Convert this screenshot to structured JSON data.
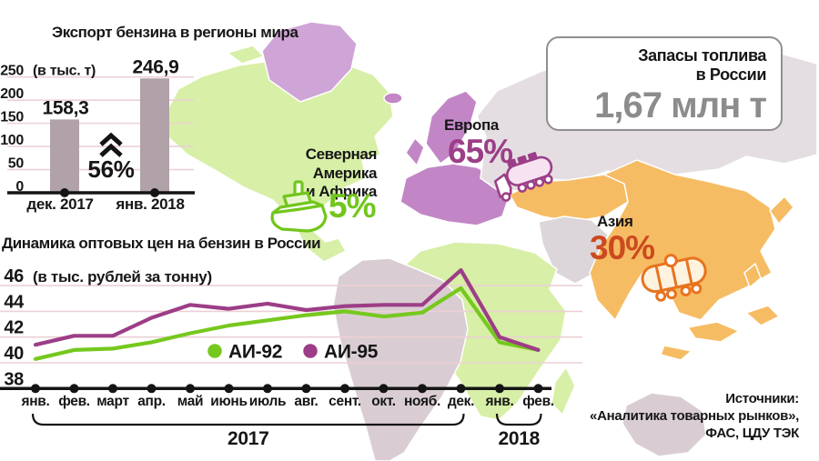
{
  "colors": {
    "green": "#76c81e",
    "purple": "#9c3e87",
    "orange_red": "#cc4a1f",
    "bar": "#b0a2a8",
    "grid_pink": "#ecd0d5",
    "muted": "#9b8e94",
    "axis_black": "#141414",
    "map_green": "#d7efa6",
    "map_purple": "#c286c6",
    "map_orchid": "#cfa4d6",
    "map_orange": "#f6bc63",
    "map_pale_gray": "#e4dee2",
    "map_gray": "#dcd6da",
    "map_mauve": "#d9cdd3"
  },
  "chart_data": [
    {
      "type": "bar",
      "title": "Экспорт бензина в регионы мира",
      "unit_label": "(в тыс. т)",
      "categories": [
        "дек. 2017",
        "янв. 2018"
      ],
      "values": [
        158.3,
        246.9
      ],
      "value_labels": [
        "158,3",
        "246,9"
      ],
      "change_label": "56%",
      "y_ticks": [
        250,
        200,
        150,
        100,
        50,
        0
      ],
      "ylim": [
        0,
        250
      ],
      "grid": true
    },
    {
      "type": "line",
      "title": "Динамика оптовых цен на бензин в России",
      "unit_label": "(в тыс. рублей за тонну)",
      "y_ticks": [
        46,
        44,
        42,
        40,
        38
      ],
      "ylim": [
        38,
        48
      ],
      "months": [
        "янв.",
        "фев.",
        "март",
        "апр.",
        "май",
        "июнь",
        "июль",
        "авг.",
        "сент.",
        "окт.",
        "нояб.",
        "дек.",
        "янв.",
        "фев."
      ],
      "year_groups": [
        {
          "label": "2017",
          "start": 0,
          "end": 11
        },
        {
          "label": "2018",
          "start": 12,
          "end": 13
        }
      ],
      "legend_position": "inside-right",
      "grid": true,
      "series": [
        {
          "name": "АИ-92",
          "color": "#76c81e",
          "values": [
            40.3,
            41.0,
            41.1,
            41.6,
            42.3,
            42.9,
            43.3,
            43.7,
            44.0,
            43.6,
            43.9,
            45.8,
            41.6,
            41.0
          ]
        },
        {
          "name": "АИ-95",
          "color": "#9c3e87",
          "values": [
            41.4,
            42.1,
            42.1,
            43.5,
            44.5,
            44.2,
            44.6,
            44.1,
            44.4,
            44.5,
            44.5,
            47.2,
            42.0,
            41.0
          ]
        }
      ]
    }
  ],
  "map_labels": {
    "north_america": {
      "line1": "Северная Америка",
      "line2": "и Африка",
      "pct": "5%"
    },
    "europe": {
      "name": "Европа",
      "pct": "65%"
    },
    "asia": {
      "name": "Азия",
      "pct": "30%"
    }
  },
  "reserves_box": {
    "line1": "Запасы топлива",
    "line2": "в России",
    "value": "1,67 млн т"
  },
  "sources": {
    "line1": "Источники:",
    "line2": "«Аналитика товарных рынков»,",
    "line3": "ФАС, ЦДУ ТЭК"
  }
}
